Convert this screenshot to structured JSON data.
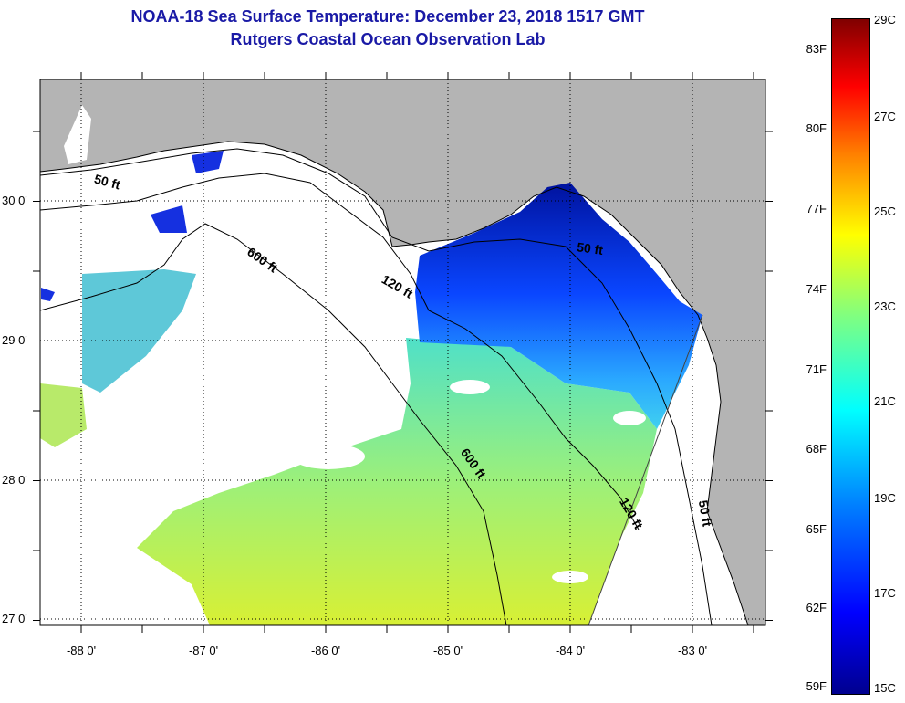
{
  "title": {
    "line1": "NOAA-18 Sea Surface Temperature:  December 23, 2018 1517 GMT",
    "line2": "Rutgers Coastal Ocean Observation Lab"
  },
  "colors": {
    "title": "#1a1aa6",
    "land": "#b4b4b4",
    "cloud": "#ffffff"
  },
  "longitude_labels": [
    "-88 0'",
    "-87 0'",
    "-86 0'",
    "-85 0'",
    "-84 0'",
    "-83 0'"
  ],
  "latitude_labels": [
    "30 0'",
    "29 0'",
    "28 0'",
    "27 0'"
  ],
  "contour_labels": [
    {
      "text": "50 ft",
      "lon": -87.9,
      "lat": 30.13,
      "rot": 15
    },
    {
      "text": "600 ft",
      "lon": -86.65,
      "lat": 29.62,
      "rot": 35
    },
    {
      "text": "120 ft",
      "lon": -85.55,
      "lat": 29.42,
      "rot": 30
    },
    {
      "text": "50 ft",
      "lon": -83.95,
      "lat": 29.64,
      "rot": 8
    },
    {
      "text": "600 ft",
      "lon": -84.9,
      "lat": 28.2,
      "rot": 55
    },
    {
      "text": "120 ft",
      "lon": -83.6,
      "lat": 27.85,
      "rot": 60
    },
    {
      "text": "50 ft",
      "lon": -82.95,
      "lat": 27.85,
      "rot": 80
    }
  ],
  "colorbar": {
    "fahrenheit_labels": [
      "83F",
      "80F",
      "77F",
      "74F",
      "71F",
      "68F",
      "65F",
      "62F",
      "59F"
    ],
    "celsius_labels": [
      "29C",
      "27C",
      "25C",
      "23C",
      "21C",
      "19C",
      "17C",
      "15C"
    ],
    "range_c": [
      15,
      29
    ]
  }
}
